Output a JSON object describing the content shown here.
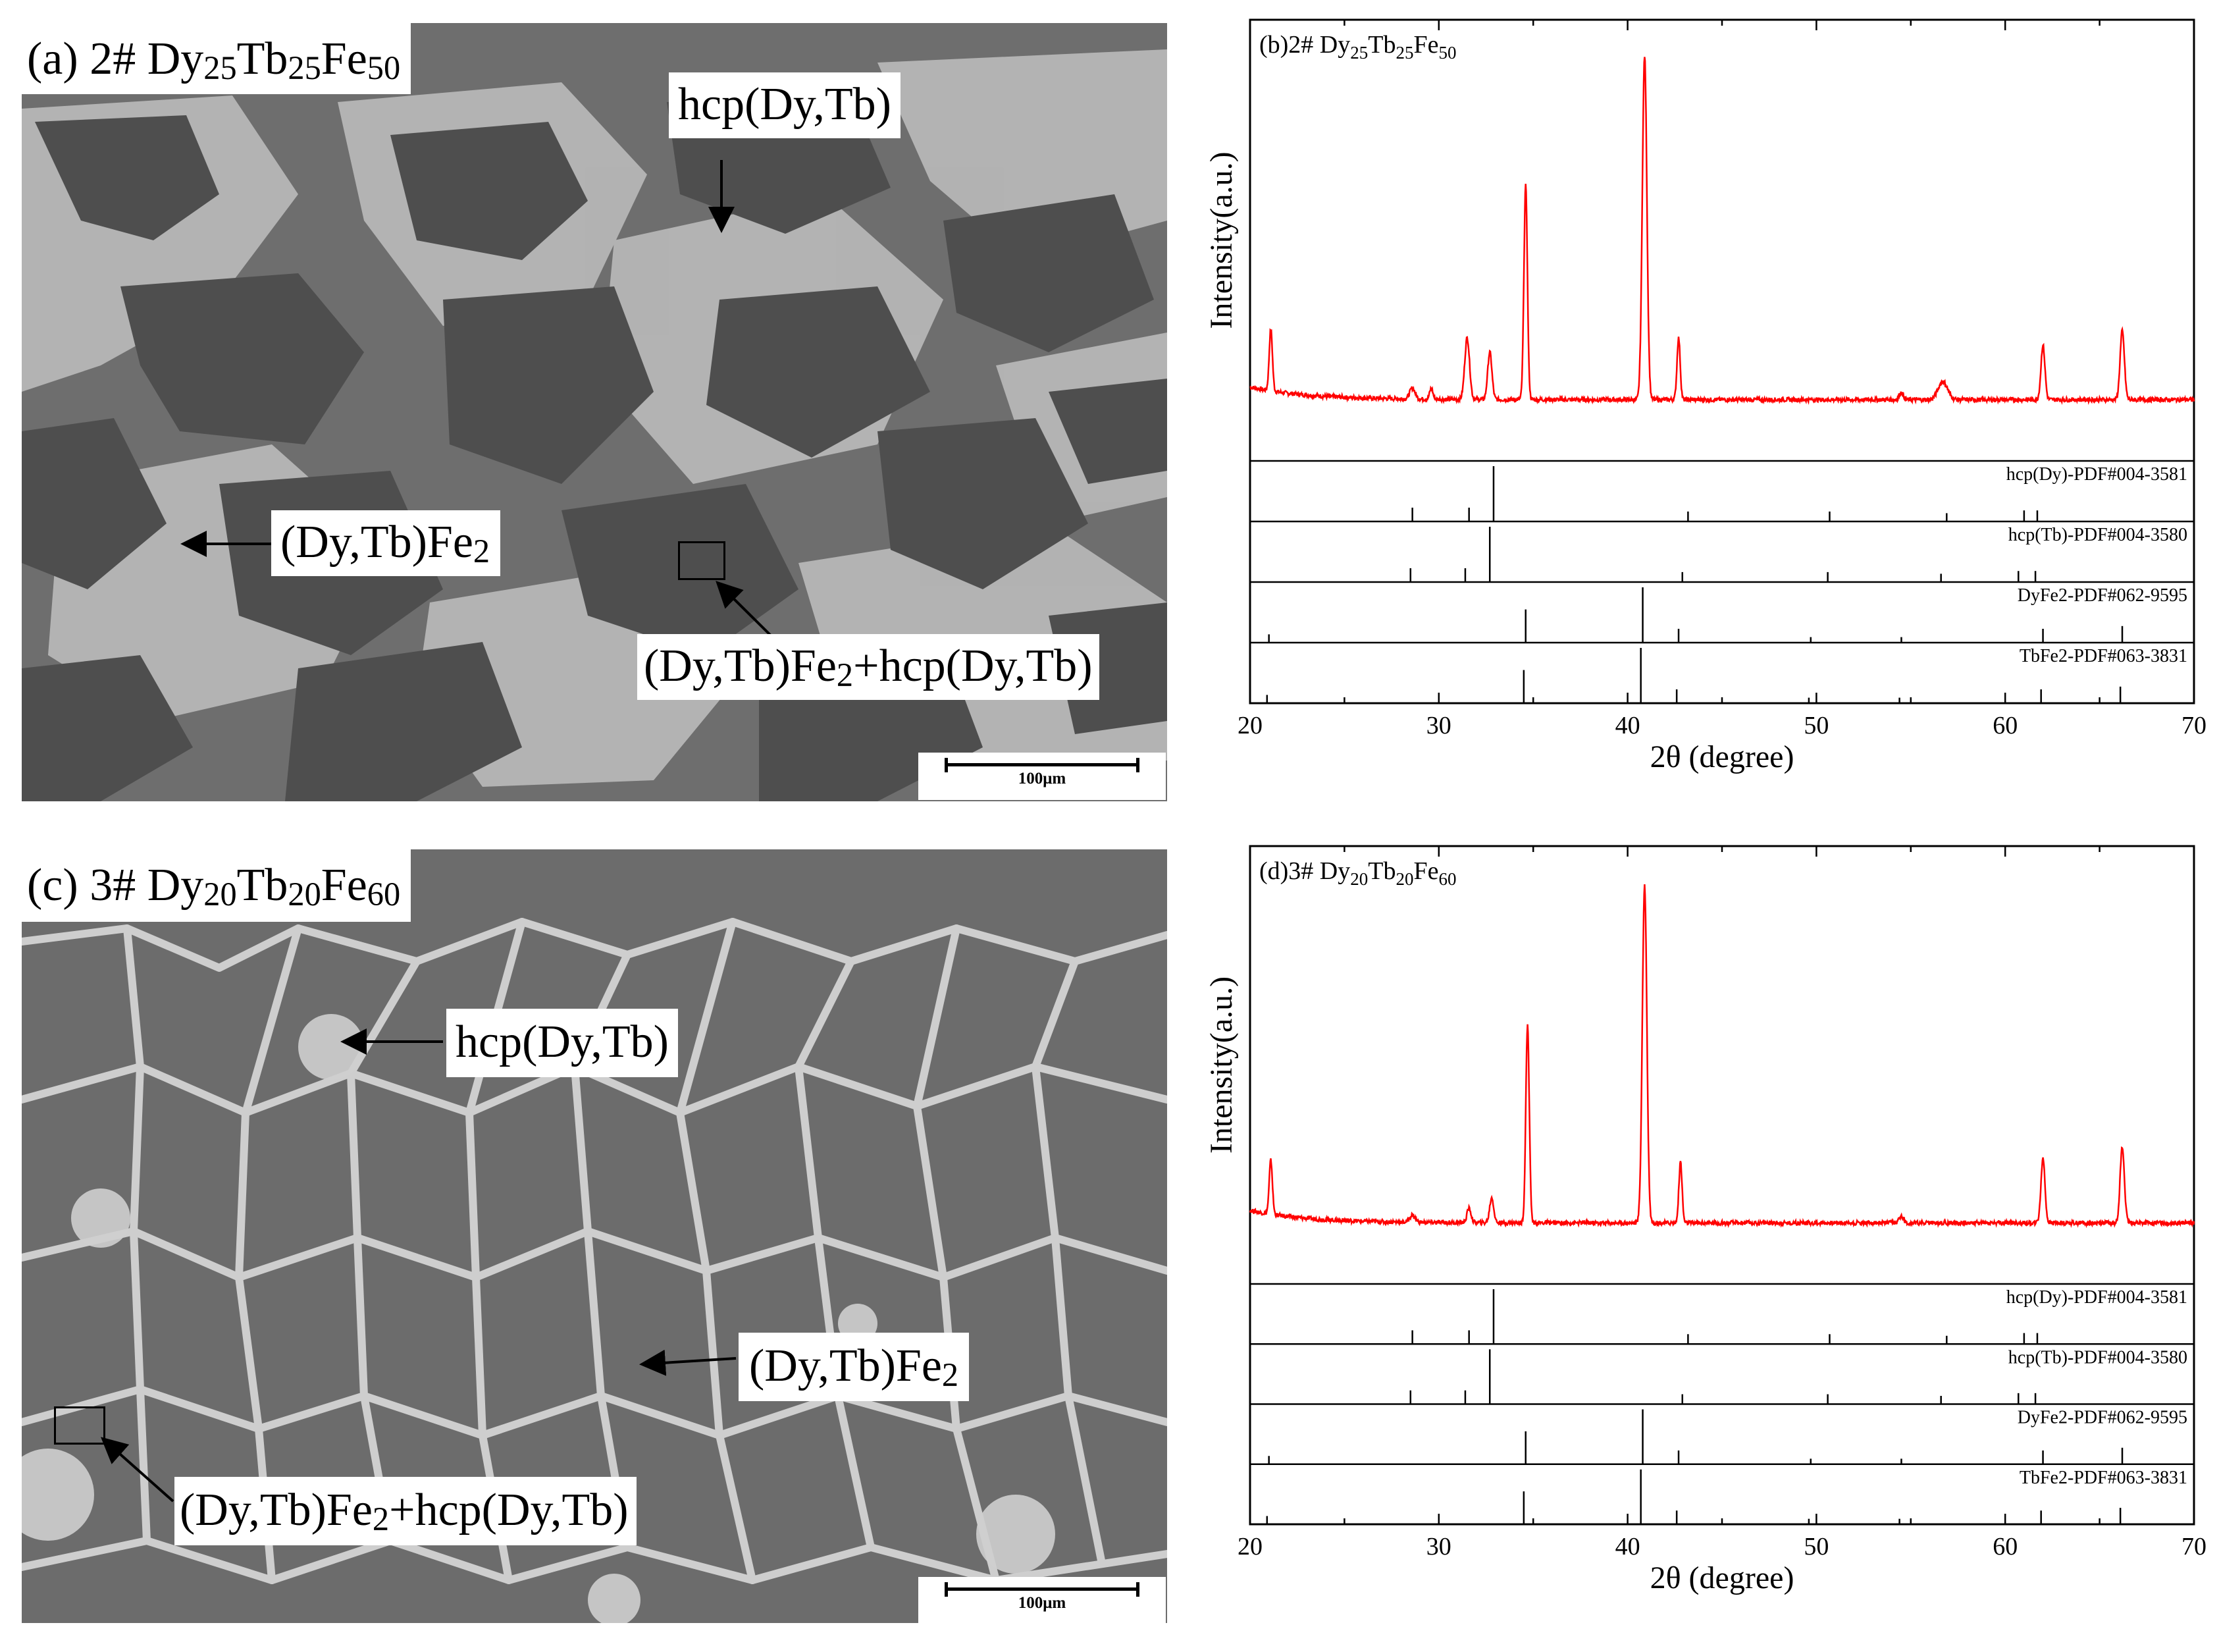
{
  "panels": {
    "a": {
      "title": "(a) 2# Dy25Tb25Fe50",
      "title_parts": [
        "(a) 2# Dy",
        "25",
        "Tb",
        "25",
        "Fe",
        "50"
      ],
      "labels": {
        "hcp": "hcp(Dy,Tb)",
        "lav_parts": [
          "(Dy,Tb)Fe",
          "2"
        ],
        "mix_parts": [
          "(Dy,Tb)Fe",
          "2",
          "+hcp(Dy,Tb)"
        ]
      },
      "scalebar": "100μm"
    },
    "c": {
      "title": "(c) 3# Dy20Tb20Fe60",
      "title_parts": [
        "(c) 3# Dy",
        "20",
        "Tb",
        "20",
        "Fe",
        "60"
      ],
      "labels": {
        "hcp": "hcp(Dy,Tb)",
        "lav_parts": [
          "(Dy,Tb)Fe",
          "2"
        ],
        "mix_parts": [
          "(Dy,Tb)Fe",
          "2",
          "+hcp(Dy,Tb)"
        ]
      },
      "scalebar": "100μm"
    }
  },
  "chart_data": [
    {
      "type": "line",
      "title": "(b)2# Dy25Tb25Fe50",
      "title_parts": [
        "(b)2# Dy",
        "25",
        "Tb",
        "25",
        "Fe",
        "50"
      ],
      "xlabel": "2θ (degree)",
      "ylabel": "Intensity(a.u.)",
      "xlim": [
        20,
        70
      ],
      "xticks": [
        20,
        30,
        40,
        50,
        60,
        70
      ],
      "series": [
        {
          "color": "#ff0000",
          "baseline": 0.06,
          "peaks": [
            {
              "x": 21.1,
              "h": 0.17,
              "w": 0.12
            },
            {
              "x": 28.6,
              "h": 0.03,
              "w": 0.2
            },
            {
              "x": 29.6,
              "h": 0.03,
              "w": 0.12
            },
            {
              "x": 31.5,
              "h": 0.17,
              "w": 0.18
            },
            {
              "x": 32.7,
              "h": 0.13,
              "w": 0.16
            },
            {
              "x": 34.6,
              "h": 0.59,
              "w": 0.13
            },
            {
              "x": 40.9,
              "h": 0.95,
              "w": 0.17
            },
            {
              "x": 42.7,
              "h": 0.17,
              "w": 0.12
            },
            {
              "x": 54.5,
              "h": 0.02,
              "w": 0.15
            },
            {
              "x": 56.7,
              "h": 0.05,
              "w": 0.35
            },
            {
              "x": 62.0,
              "h": 0.15,
              "w": 0.15
            },
            {
              "x": 66.2,
              "h": 0.19,
              "w": 0.16
            }
          ]
        }
      ],
      "references": [
        {
          "label": "hcp(Dy)-PDF#004-3581",
          "lines": [
            [
              28.6,
              0.25
            ],
            [
              31.6,
              0.25
            ],
            [
              32.9,
              1.0
            ],
            [
              43.2,
              0.18
            ],
            [
              50.7,
              0.18
            ],
            [
              56.9,
              0.15
            ],
            [
              61.0,
              0.2
            ],
            [
              61.7,
              0.2
            ]
          ]
        },
        {
          "label": "hcp(Tb)-PDF#004-3580",
          "lines": [
            [
              28.5,
              0.25
            ],
            [
              31.4,
              0.25
            ],
            [
              32.7,
              1.0
            ],
            [
              42.9,
              0.18
            ],
            [
              50.6,
              0.18
            ],
            [
              56.6,
              0.15
            ],
            [
              60.7,
              0.2
            ],
            [
              61.6,
              0.2
            ]
          ]
        },
        {
          "label": "DyFe2-PDF#062-9595",
          "lines": [
            [
              21.0,
              0.15
            ],
            [
              34.6,
              0.6
            ],
            [
              40.8,
              1.0
            ],
            [
              42.7,
              0.25
            ],
            [
              49.7,
              0.1
            ],
            [
              54.5,
              0.1
            ],
            [
              62.0,
              0.25
            ],
            [
              66.2,
              0.3
            ]
          ]
        },
        {
          "label": "TbFe2-PDF#063-3831",
          "lines": [
            [
              20.9,
              0.15
            ],
            [
              34.5,
              0.6
            ],
            [
              40.7,
              1.0
            ],
            [
              42.6,
              0.25
            ],
            [
              49.6,
              0.1
            ],
            [
              54.4,
              0.1
            ],
            [
              61.9,
              0.25
            ],
            [
              66.1,
              0.3
            ]
          ]
        }
      ]
    },
    {
      "type": "line",
      "title": "(d)3# Dy20Tb20Fe60",
      "title_parts": [
        "(d)3# Dy",
        "20",
        "Tb",
        "20",
        "Fe",
        "60"
      ],
      "xlabel": "2θ (degree)",
      "ylabel": "Intensity(a.u.)",
      "xlim": [
        20,
        70
      ],
      "xticks": [
        20,
        30,
        40,
        50,
        60,
        70
      ],
      "series": [
        {
          "color": "#ff0000",
          "baseline": 0.06,
          "peaks": [
            {
              "x": 21.1,
              "h": 0.15,
              "w": 0.12
            },
            {
              "x": 28.6,
              "h": 0.02,
              "w": 0.2
            },
            {
              "x": 31.6,
              "h": 0.04,
              "w": 0.15
            },
            {
              "x": 32.8,
              "h": 0.07,
              "w": 0.15
            },
            {
              "x": 34.7,
              "h": 0.55,
              "w": 0.13
            },
            {
              "x": 40.9,
              "h": 0.94,
              "w": 0.17
            },
            {
              "x": 42.8,
              "h": 0.17,
              "w": 0.12
            },
            {
              "x": 54.5,
              "h": 0.02,
              "w": 0.15
            },
            {
              "x": 62.0,
              "h": 0.18,
              "w": 0.15
            },
            {
              "x": 66.2,
              "h": 0.21,
              "w": 0.16
            }
          ]
        }
      ],
      "references": [
        {
          "label": "hcp(Dy)-PDF#004-3581",
          "lines": [
            [
              28.6,
              0.25
            ],
            [
              31.6,
              0.25
            ],
            [
              32.9,
              1.0
            ],
            [
              43.2,
              0.18
            ],
            [
              50.7,
              0.18
            ],
            [
              56.9,
              0.15
            ],
            [
              61.0,
              0.2
            ],
            [
              61.7,
              0.2
            ]
          ]
        },
        {
          "label": "hcp(Tb)-PDF#004-3580",
          "lines": [
            [
              28.5,
              0.25
            ],
            [
              31.4,
              0.25
            ],
            [
              32.7,
              1.0
            ],
            [
              42.9,
              0.18
            ],
            [
              50.6,
              0.18
            ],
            [
              56.6,
              0.15
            ],
            [
              60.7,
              0.2
            ],
            [
              61.6,
              0.2
            ]
          ]
        },
        {
          "label": "DyFe2-PDF#062-9595",
          "lines": [
            [
              21.0,
              0.15
            ],
            [
              34.6,
              0.6
            ],
            [
              40.8,
              1.0
            ],
            [
              42.7,
              0.25
            ],
            [
              49.7,
              0.1
            ],
            [
              54.5,
              0.1
            ],
            [
              62.0,
              0.25
            ],
            [
              66.2,
              0.3
            ]
          ]
        },
        {
          "label": "TbFe2-PDF#063-3831",
          "lines": [
            [
              20.9,
              0.15
            ],
            [
              34.5,
              0.6
            ],
            [
              40.7,
              1.0
            ],
            [
              42.6,
              0.25
            ],
            [
              49.6,
              0.1
            ],
            [
              54.4,
              0.1
            ],
            [
              61.9,
              0.25
            ],
            [
              66.1,
              0.3
            ]
          ]
        }
      ]
    }
  ]
}
